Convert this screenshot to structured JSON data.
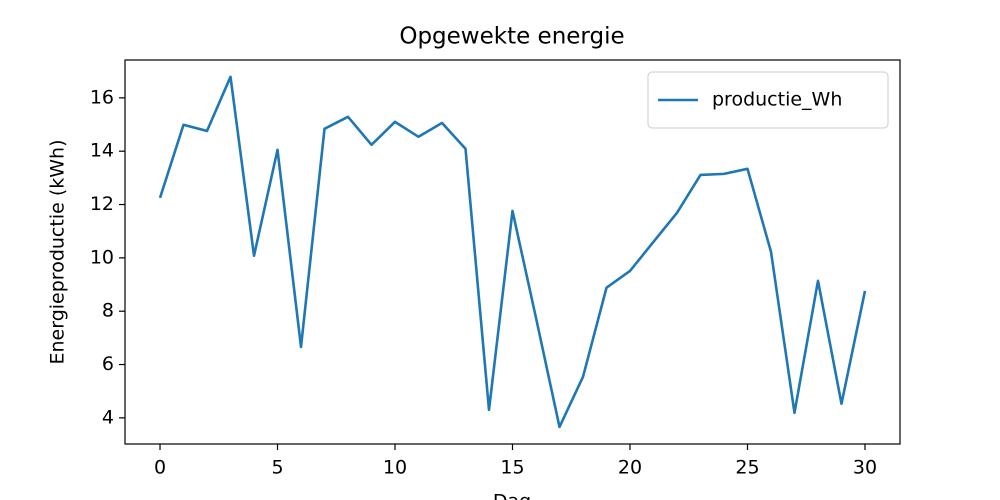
{
  "chart_data": {
    "type": "line",
    "title": "Opgewekte energie",
    "xlabel": "Dag",
    "ylabel": "Energieproductie (kWh)",
    "x": [
      0,
      1,
      2,
      3,
      4,
      5,
      6,
      7,
      8,
      9,
      10,
      11,
      12,
      13,
      14,
      15,
      16,
      17,
      18,
      19,
      20,
      21,
      22,
      23,
      24,
      25,
      26,
      27,
      28,
      29,
      30
    ],
    "series": [
      {
        "name": "productie_Wh",
        "color": "#1f77b4",
        "values": [
          12.25,
          14.99,
          14.76,
          16.79,
          10.08,
          14.05,
          6.66,
          14.84,
          15.29,
          14.24,
          15.1,
          14.54,
          15.06,
          14.09,
          4.3,
          11.76,
          7.75,
          3.66,
          5.54,
          8.88,
          9.51,
          10.6,
          11.69,
          13.11,
          13.15,
          13.34,
          10.23,
          4.19,
          9.14,
          4.53,
          8.76
        ]
      }
    ],
    "xlim": [
      -1.49,
      31.49
    ],
    "xticks": [
      0,
      5,
      10,
      15,
      20,
      25,
      30
    ],
    "ylim": [
      3.02,
      17.42
    ],
    "yticks": [
      4,
      6,
      8,
      10,
      12,
      14,
      16
    ],
    "legend": "upper right"
  }
}
